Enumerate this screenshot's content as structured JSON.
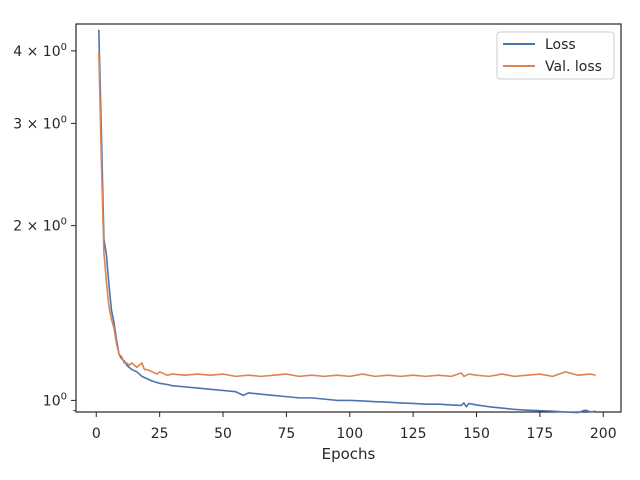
{
  "chart_data": {
    "type": "line",
    "title": "",
    "xlabel": "Epochs",
    "ylabel": "",
    "yscale": "log",
    "xlim": [
      -8,
      207
    ],
    "ylim": [
      0.955,
      4.45
    ],
    "xticks": [
      0,
      25,
      50,
      75,
      100,
      125,
      150,
      175,
      200
    ],
    "xtick_labels": [
      "0",
      "25",
      "50",
      "75",
      "100",
      "125",
      "150",
      "175",
      "200"
    ],
    "yticks": [
      1,
      2,
      3,
      4
    ],
    "ytick_labels": [
      {
        "base": "10",
        "exp": "0",
        "coef": ""
      },
      {
        "base": "10",
        "exp": "0",
        "coef": "2 × "
      },
      {
        "base": "10",
        "exp": "0",
        "coef": "3 × "
      },
      {
        "base": "10",
        "exp": "0",
        "coef": "4 × "
      }
    ],
    "grid": false,
    "legend_position": "top-right",
    "series": [
      {
        "name": "Loss",
        "color": "#4c72b0",
        "x": [
          1,
          2,
          3,
          4,
          5,
          6,
          7,
          8,
          9,
          10,
          11,
          12,
          13,
          14,
          15,
          16,
          17,
          18,
          20,
          22,
          25,
          28,
          30,
          35,
          40,
          45,
          50,
          55,
          58,
          60,
          65,
          70,
          75,
          80,
          85,
          90,
          95,
          100,
          105,
          110,
          115,
          120,
          125,
          130,
          135,
          140,
          144,
          145,
          146,
          147,
          150,
          155,
          160,
          165,
          170,
          175,
          180,
          185,
          190,
          193,
          195,
          197
        ],
        "y": [
          4.35,
          2.9,
          1.9,
          1.78,
          1.58,
          1.43,
          1.36,
          1.27,
          1.2,
          1.18,
          1.17,
          1.15,
          1.14,
          1.13,
          1.125,
          1.12,
          1.11,
          1.1,
          1.09,
          1.08,
          1.07,
          1.065,
          1.06,
          1.055,
          1.05,
          1.045,
          1.04,
          1.035,
          1.02,
          1.03,
          1.025,
          1.02,
          1.015,
          1.01,
          1.01,
          1.005,
          1.0,
          1.0,
          0.998,
          0.995,
          0.993,
          0.99,
          0.988,
          0.985,
          0.985,
          0.982,
          0.98,
          0.99,
          0.975,
          0.988,
          0.982,
          0.975,
          0.97,
          0.965,
          0.962,
          0.96,
          0.958,
          0.955,
          0.953,
          0.962,
          0.955,
          0.958
        ]
      },
      {
        "name": "Val. loss",
        "color": "#dd8452",
        "x": [
          1,
          2,
          3,
          4,
          5,
          6,
          7,
          8,
          9,
          10,
          11,
          12,
          13,
          14,
          15,
          16,
          17,
          18,
          19,
          20,
          22,
          24,
          25,
          28,
          30,
          35,
          40,
          45,
          50,
          55,
          60,
          65,
          70,
          75,
          80,
          85,
          90,
          95,
          100,
          105,
          110,
          115,
          120,
          125,
          130,
          135,
          140,
          144,
          145,
          147,
          150,
          155,
          160,
          165,
          170,
          175,
          180,
          185,
          190,
          195,
          197
        ],
        "y": [
          4.0,
          2.6,
          1.8,
          1.6,
          1.45,
          1.38,
          1.33,
          1.25,
          1.2,
          1.19,
          1.16,
          1.16,
          1.15,
          1.16,
          1.15,
          1.14,
          1.15,
          1.16,
          1.13,
          1.13,
          1.12,
          1.11,
          1.12,
          1.105,
          1.11,
          1.105,
          1.11,
          1.105,
          1.11,
          1.1,
          1.105,
          1.1,
          1.105,
          1.11,
          1.1,
          1.105,
          1.1,
          1.105,
          1.1,
          1.11,
          1.1,
          1.105,
          1.1,
          1.105,
          1.1,
          1.105,
          1.1,
          1.115,
          1.1,
          1.11,
          1.105,
          1.1,
          1.11,
          1.1,
          1.105,
          1.11,
          1.1,
          1.12,
          1.105,
          1.11,
          1.105
        ]
      }
    ]
  }
}
